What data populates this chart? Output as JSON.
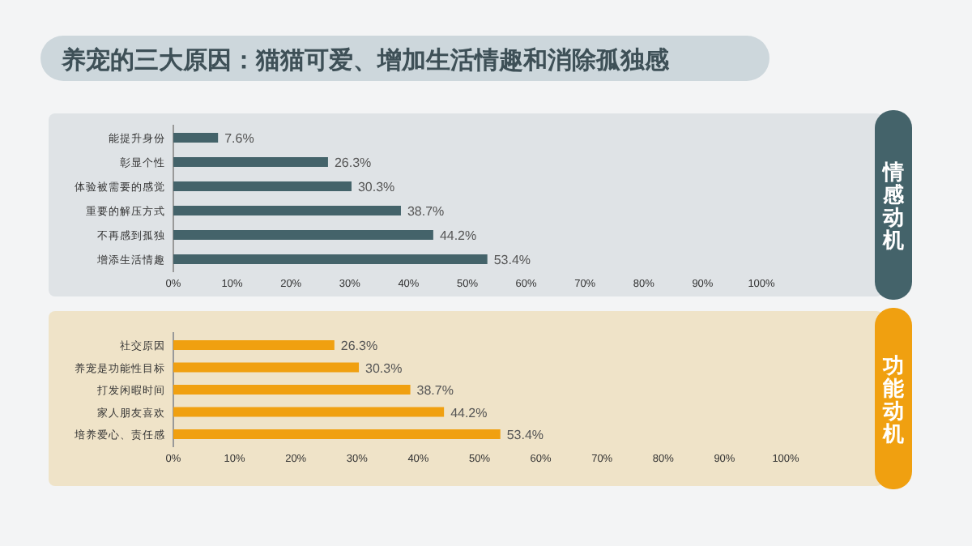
{
  "chart_data": [
    {
      "type": "bar",
      "orientation": "horizontal",
      "title": "养宠的三大原因：猫猫可爱、增加生活情趣和消除孤独感",
      "ylabel": "情感动机",
      "categories": [
        "能提升身份",
        "彰显个性",
        "体验被需要的感觉",
        "重要的解压方式",
        "不再感到孤独",
        "增添生活情趣"
      ],
      "values": [
        7.6,
        26.3,
        30.3,
        38.7,
        44.2,
        53.4
      ],
      "value_labels": [
        "7.6%",
        "26.3%",
        "30.3%",
        "38.7%",
        "44.2%",
        "53.4%"
      ],
      "color": "#44636a",
      "xlim": [
        0,
        100
      ],
      "xticks": [
        {
          "value": 0,
          "label": "0%"
        },
        {
          "value": 10,
          "label": "10%"
        },
        {
          "value": 20,
          "label": "20%"
        },
        {
          "value": 30,
          "label": "30%"
        },
        {
          "value": 40,
          "label": "40%"
        },
        {
          "value": 50,
          "label": "50%"
        },
        {
          "value": 60,
          "label": "60%"
        },
        {
          "value": 70,
          "label": "70%"
        },
        {
          "value": 80,
          "label": "80%"
        },
        {
          "value": 90,
          "label": "90%"
        },
        {
          "value": 100,
          "label": "100%"
        }
      ],
      "grid": false
    },
    {
      "type": "bar",
      "orientation": "horizontal",
      "ylabel": "功能动机",
      "categories": [
        "社交原因",
        "养宠是功能性目标",
        "打发闲暇时间",
        "家人朋友喜欢",
        "培养爱心、责任感"
      ],
      "values": [
        26.3,
        30.3,
        38.7,
        44.2,
        53.4
      ],
      "value_labels": [
        "26.3%",
        "30.3%",
        "38.7%",
        "44.2%",
        "53.4%"
      ],
      "color": "#f0a010",
      "xlim": [
        0,
        100
      ],
      "xticks": [
        {
          "value": 0,
          "label": "0%"
        },
        {
          "value": 10,
          "label": "10%"
        },
        {
          "value": 20,
          "label": "20%"
        },
        {
          "value": 30,
          "label": "30%"
        },
        {
          "value": 40,
          "label": "40%"
        },
        {
          "value": 50,
          "label": "50%"
        },
        {
          "value": 60,
          "label": "60%"
        },
        {
          "value": 70,
          "label": "70%"
        },
        {
          "value": 80,
          "label": "80%"
        },
        {
          "value": 90,
          "label": "90%"
        },
        {
          "value": 100,
          "label": "100%"
        }
      ],
      "grid": false
    }
  ]
}
